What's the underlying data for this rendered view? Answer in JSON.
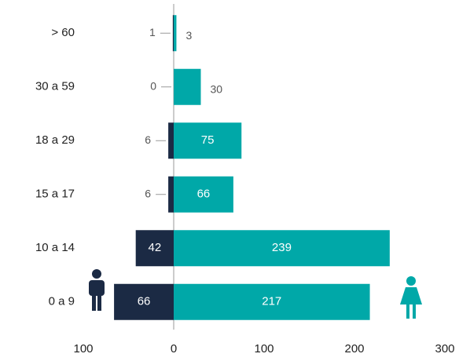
{
  "chart_data": {
    "type": "pyramid",
    "categories": [
      "> 60",
      "30 a 59",
      "18 a 29",
      "15 a 17",
      "10 a 14",
      "0 a 9"
    ],
    "series": [
      {
        "name": "Hombres",
        "color": "#1b2a44",
        "values": [
          1,
          0,
          6,
          6,
          42,
          66
        ]
      },
      {
        "name": "Mujeres",
        "color": "#00a8a8",
        "values": [
          3,
          30,
          75,
          66,
          239,
          217
        ]
      }
    ],
    "xlim": [
      -100,
      300
    ],
    "xticks": [
      {
        "value": -100,
        "label": "100"
      },
      0,
      100,
      200,
      300
    ]
  }
}
